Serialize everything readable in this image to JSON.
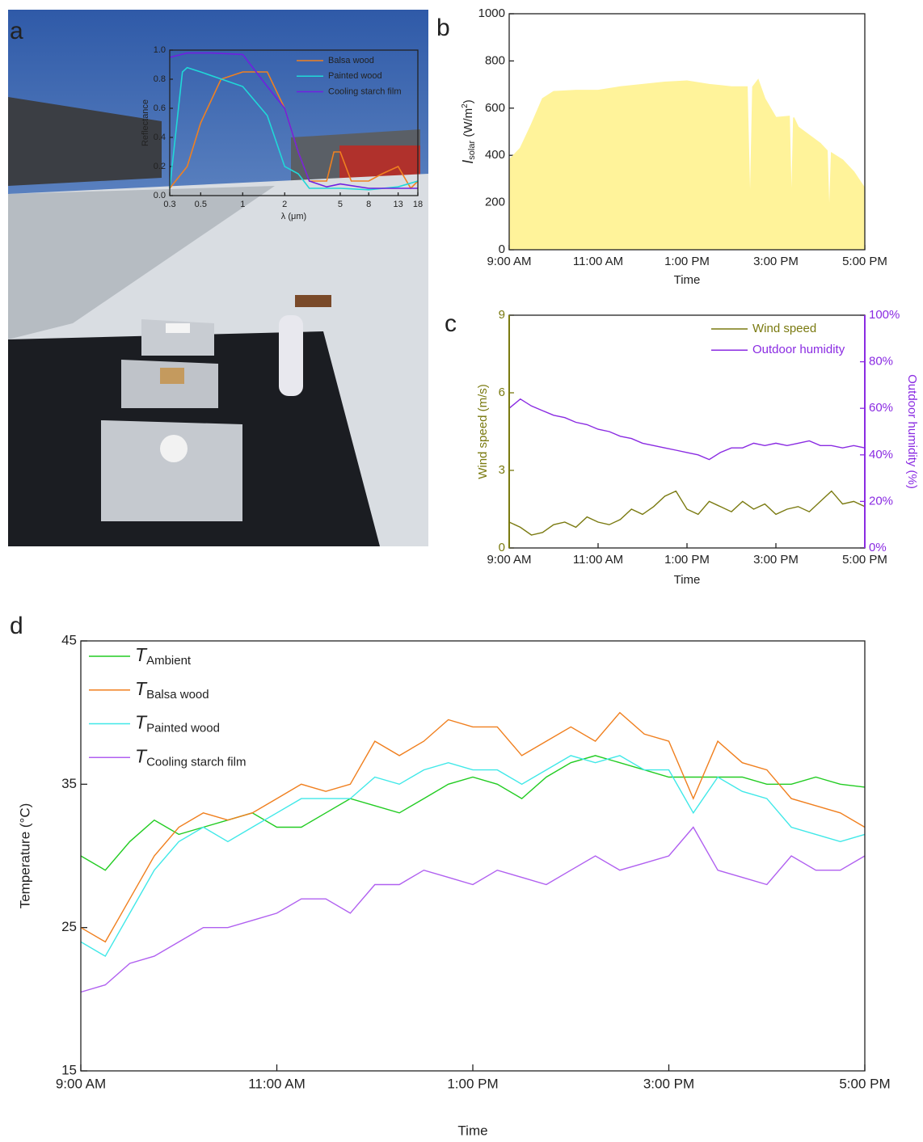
{
  "chart_data": [
    {
      "type": "line",
      "panel": "a",
      "xlabel": "λ (μm)",
      "ylabel": "Reflectance",
      "xscale": "log",
      "xlim": [
        0.3,
        18
      ],
      "xticks": [
        0.3,
        0.5,
        1,
        2,
        5,
        8,
        13,
        18
      ],
      "ylim": [
        0,
        1
      ],
      "yticks": [
        {
          "value": 0,
          "label": "0.0"
        },
        0.2,
        0.4,
        0.6,
        0.8,
        {
          "value": 1,
          "label": "1.0"
        }
      ],
      "legend": "upper right",
      "series": [
        {
          "name": "Balsa wood",
          "color": "#f08020",
          "x": [
            0.3,
            0.4,
            0.5,
            0.7,
            1,
            1.5,
            2,
            2.5,
            3,
            4,
            4.5,
            5,
            6,
            8,
            10,
            13,
            16,
            18
          ],
          "values": [
            0.05,
            0.2,
            0.5,
            0.8,
            0.85,
            0.85,
            0.6,
            0.3,
            0.1,
            0.1,
            0.3,
            0.3,
            0.1,
            0.1,
            0.15,
            0.2,
            0.05,
            0.1
          ]
        },
        {
          "name": "Painted wood",
          "color": "#20d8d8",
          "x": [
            0.3,
            0.37,
            0.4,
            0.5,
            1,
            1.5,
            2,
            2.5,
            3,
            5,
            8,
            13,
            18
          ],
          "values": [
            0.05,
            0.85,
            0.88,
            0.85,
            0.75,
            0.55,
            0.2,
            0.15,
            0.05,
            0.05,
            0.04,
            0.06,
            0.1
          ]
        },
        {
          "name": "Cooling starch film",
          "color": "#7020e0",
          "x": [
            0.3,
            0.4,
            0.6,
            1,
            1.5,
            2,
            2.5,
            3,
            4,
            5,
            8,
            13,
            18
          ],
          "values": [
            0.95,
            0.98,
            0.98,
            0.97,
            0.75,
            0.6,
            0.3,
            0.1,
            0.06,
            0.08,
            0.05,
            0.05,
            0.05
          ]
        }
      ]
    },
    {
      "type": "area",
      "panel": "b",
      "xlabel": "Time",
      "ylabel_parts": [
        "I",
        "solar",
        " (W/m",
        "2",
        ")"
      ],
      "color": "#fff39a",
      "xlim": [
        9,
        17
      ],
      "xticks": [
        {
          "value": 9,
          "label": "9:00 AM"
        },
        {
          "value": 11,
          "label": "11:00 AM"
        },
        {
          "value": 13,
          "label": "1:00 PM"
        },
        {
          "value": 15,
          "label": "3:00 PM"
        },
        {
          "value": 17,
          "label": "5:00 PM"
        }
      ],
      "ylim": [
        0,
        1000
      ],
      "yticks": [
        0,
        200,
        400,
        600,
        800,
        1000
      ],
      "x": [
        9,
        9.25,
        9.5,
        9.75,
        10,
        10.5,
        11,
        11.5,
        12,
        12.5,
        13,
        13.5,
        14,
        14.35,
        14.42,
        14.48,
        14.6,
        14.75,
        15,
        15.3,
        15.35,
        15.4,
        15.5,
        16,
        16.15,
        16.2,
        16.25,
        16.5,
        16.75,
        17
      ],
      "values": [
        380,
        430,
        530,
        640,
        670,
        675,
        675,
        690,
        700,
        710,
        715,
        700,
        690,
        690,
        140,
        690,
        720,
        640,
        560,
        565,
        150,
        560,
        520,
        450,
        420,
        120,
        410,
        380,
        330,
        260
      ]
    },
    {
      "type": "line",
      "panel": "c",
      "xlabel": "Time",
      "ylabel": "Wind speed (m/s)",
      "y2label": "Outdoor humidity (%)",
      "legend": "upper right",
      "xlim": [
        9,
        17
      ],
      "xticks": [
        {
          "value": 9,
          "label": "9:00 AM"
        },
        {
          "value": 11,
          "label": "11:00 AM"
        },
        {
          "value": 13,
          "label": "1:00 PM"
        },
        {
          "value": 15,
          "label": "3:00 PM"
        },
        {
          "value": 17,
          "label": "5:00 PM"
        }
      ],
      "ylim": [
        0,
        9
      ],
      "yticks": [
        0,
        3,
        6,
        9
      ],
      "y2lim": [
        0,
        100
      ],
      "y2ticks": [
        {
          "value": 0,
          "label": "0%"
        },
        {
          "value": 20,
          "label": "20%"
        },
        {
          "value": 40,
          "label": "40%"
        },
        {
          "value": 60,
          "label": "60%"
        },
        {
          "value": 80,
          "label": "80%"
        },
        {
          "value": 100,
          "label": "100%"
        }
      ],
      "x": [
        9,
        9.25,
        9.5,
        9.75,
        10,
        10.25,
        10.5,
        10.75,
        11,
        11.25,
        11.5,
        11.75,
        12,
        12.25,
        12.5,
        12.75,
        13,
        13.25,
        13.5,
        13.75,
        14,
        14.25,
        14.5,
        14.75,
        15,
        15.25,
        15.5,
        15.75,
        16,
        16.25,
        16.5,
        16.75,
        17
      ],
      "series": [
        {
          "name": "Wind speed",
          "color": "#7a7a10",
          "values": [
            1,
            0.8,
            0.5,
            0.6,
            0.9,
            1,
            0.8,
            1.2,
            1,
            0.9,
            1.1,
            1.5,
            1.3,
            1.6,
            2,
            2.2,
            1.5,
            1.3,
            1.8,
            1.6,
            1.4,
            1.8,
            1.5,
            1.7,
            1.3,
            1.5,
            1.6,
            1.4,
            1.8,
            2.2,
            1.7,
            1.8,
            1.6
          ]
        },
        {
          "name": "Outdoor humidity",
          "color": "#8a2be2",
          "axis": "y2",
          "values": [
            60,
            64,
            61,
            59,
            57,
            56,
            54,
            53,
            51,
            50,
            48,
            47,
            45,
            44,
            43,
            42,
            41,
            40,
            38,
            41,
            43,
            43,
            45,
            44,
            45,
            44,
            45,
            46,
            44,
            44,
            43,
            44,
            43
          ]
        }
      ]
    },
    {
      "type": "line",
      "panel": "d",
      "xlabel": "Time",
      "ylabel": "Temperature (°C)",
      "legend_symbol": "T",
      "legend": "upper left",
      "xlim": [
        9,
        17
      ],
      "xticks": [
        {
          "value": 9,
          "label": "9:00 AM"
        },
        {
          "value": 11,
          "label": "11:00 AM"
        },
        {
          "value": 13,
          "label": "1:00 PM"
        },
        {
          "value": 15,
          "label": "3:00 PM"
        },
        {
          "value": 17,
          "label": "5:00 PM"
        }
      ],
      "ylim": [
        15,
        45
      ],
      "yticks": [
        15,
        25,
        35,
        45
      ],
      "x": [
        9,
        9.25,
        9.5,
        9.75,
        10,
        10.25,
        10.5,
        10.75,
        11,
        11.25,
        11.5,
        11.75,
        12,
        12.25,
        12.5,
        12.75,
        13,
        13.25,
        13.5,
        13.75,
        14,
        14.25,
        14.5,
        14.75,
        15,
        15.25,
        15.5,
        15.75,
        16,
        16.25,
        16.5,
        16.75,
        17
      ],
      "series": [
        {
          "name": "Ambient",
          "color": "#22cc22",
          "values": [
            30,
            29,
            31,
            32.5,
            31.5,
            32,
            32.5,
            33,
            32,
            32,
            33,
            34,
            33.5,
            33,
            34,
            35,
            35.5,
            35,
            34,
            35.5,
            36.5,
            37,
            36.5,
            36,
            35.5,
            35.5,
            35.5,
            35.5,
            35,
            35,
            35.5,
            35,
            34.8
          ]
        },
        {
          "name": "Balsa wood",
          "color": "#f07f1e",
          "values": [
            25,
            24,
            27,
            30,
            32,
            33,
            32.5,
            33,
            34,
            35,
            34.5,
            35,
            38,
            37,
            38,
            39.5,
            39,
            39,
            37,
            38,
            39,
            38,
            40,
            38.5,
            38,
            34,
            38,
            36.5,
            36,
            34,
            33.5,
            33,
            32
          ]
        },
        {
          "name": "Painted wood",
          "color": "#40e8e8",
          "values": [
            24,
            23,
            26,
            29,
            31,
            32,
            31,
            32,
            33,
            34,
            34,
            34,
            35.5,
            35,
            36,
            36.5,
            36,
            36,
            35,
            36,
            37,
            36.5,
            37,
            36,
            36,
            33,
            35.5,
            34.5,
            34,
            32,
            31.5,
            31,
            31.5
          ]
        },
        {
          "name": "Cooling starch film",
          "color": "#b060f0",
          "values": [
            20.5,
            21,
            22.5,
            23,
            24,
            25,
            25,
            25.5,
            26,
            27,
            27,
            26,
            28,
            28,
            29,
            28.5,
            28,
            29,
            28.5,
            28,
            29,
            30,
            29,
            29.5,
            30,
            32,
            29,
            28.5,
            28,
            30,
            29,
            29,
            30
          ]
        }
      ]
    }
  ]
}
